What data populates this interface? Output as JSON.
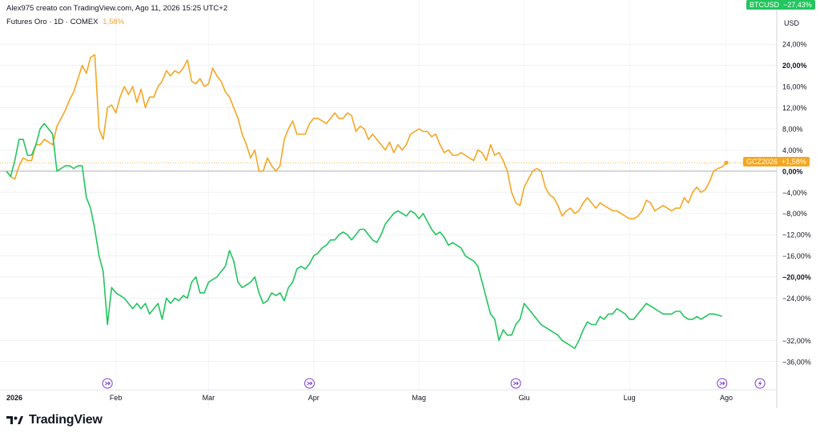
{
  "header": {
    "attribution": "Alex975 creato con TradingView.com, Ago 11, 2026 15:25 UTC+2",
    "symbol_line": "Futures Oro · 1D · COMEX",
    "symbol_change": "1,58%"
  },
  "axis": {
    "currency": "USD",
    "y_ticks": [
      "24,00%",
      "20,00%",
      "16,00%",
      "12,00%",
      "8,00%",
      "4,00%",
      "0,00%",
      "−4,00%",
      "−8,00%",
      "−12,00%",
      "−16,00%",
      "−20,00%",
      "−24,00%",
      "−32,00%",
      "−36,00%"
    ],
    "y_tick_values": [
      24,
      20,
      16,
      12,
      8,
      4,
      0,
      -4,
      -8,
      -12,
      -16,
      -20,
      -24,
      -32,
      -36
    ],
    "bold_ticks": [
      "20,00%",
      "0,00%",
      "−20,00%"
    ],
    "x_ticks": [
      "2026",
      "Feb",
      "Mar",
      "Apr",
      "Mag",
      "Giu",
      "Lug",
      "Ago"
    ],
    "x_tick_index": [
      0,
      26,
      48,
      73,
      98,
      123,
      148,
      171
    ]
  },
  "logo": {
    "text": "TradingView"
  },
  "colors": {
    "gold": "#f5a623",
    "btc": "#22c55e",
    "grid": "#eef0f3",
    "zero": "#9598a1",
    "event": "#7b3fd1"
  },
  "event_icons": [
    {
      "icon": "split-arrow-icon",
      "index": 24
    },
    {
      "icon": "split-arrow-icon",
      "index": 72
    },
    {
      "icon": "split-arrow-icon",
      "index": 121
    },
    {
      "icon": "split-arrow-icon",
      "index": 170
    },
    {
      "icon": "lightning-icon",
      "index": 179
    }
  ],
  "chart_data": {
    "type": "line",
    "y_unit": "%",
    "ylim": [
      -38,
      26
    ],
    "series": [
      {
        "name": "GCZ2026",
        "last_label": "+1,58%",
        "color": "#f5a623",
        "values": [
          0,
          -1,
          -1.5,
          1,
          2.5,
          2,
          2,
          5,
          5,
          6,
          5.5,
          5,
          8.5,
          10,
          11.5,
          13.5,
          15,
          17.5,
          20,
          18.5,
          21.5,
          22,
          8,
          6,
          12,
          12.5,
          11,
          14,
          16,
          14.5,
          16,
          13,
          15.5,
          12,
          14,
          14,
          16,
          17,
          19,
          18,
          19,
          18.5,
          19.5,
          21,
          17,
          16.5,
          17.5,
          16,
          16.5,
          19.5,
          18,
          17,
          15,
          14,
          12,
          10,
          7,
          5,
          2.5,
          4,
          0,
          0,
          2.5,
          1,
          0,
          1,
          6,
          8,
          9.5,
          7,
          7,
          7,
          9,
          10,
          10,
          9.5,
          9,
          10,
          11,
          10,
          10,
          11,
          10.5,
          7.5,
          8.5,
          8,
          6,
          7,
          6,
          5,
          4,
          5.5,
          3.5,
          5,
          4,
          5,
          7,
          7.5,
          8,
          7.5,
          7.5,
          6.5,
          7,
          5,
          3.5,
          4,
          3,
          3,
          3.5,
          3,
          2.5,
          2,
          4,
          3.5,
          2,
          5,
          3,
          3.5,
          2,
          0,
          -4,
          -6,
          -6.5,
          -3,
          -1.5,
          0,
          0.5,
          0,
          -3,
          -4.5,
          -5,
          -6.5,
          -8.5,
          -7.5,
          -7,
          -8,
          -7.5,
          -6,
          -5,
          -6,
          -7,
          -6,
          -6.5,
          -7,
          -7.5,
          -7.5,
          -8,
          -8.5,
          -9,
          -9,
          -8.5,
          -7.5,
          -5.5,
          -6,
          -7.5,
          -7,
          -6.5,
          -7,
          -7.5,
          -7,
          -7,
          -5,
          -6,
          -4,
          -3,
          -4,
          -3.5,
          -2,
          0,
          0.5,
          0.8,
          1.58
        ]
      },
      {
        "name": "BTCUSD",
        "last_label": "−27,43%",
        "color": "#22c55e",
        "values": [
          0,
          -1,
          2,
          6,
          6,
          3,
          3,
          5,
          8,
          9,
          8,
          7,
          0,
          0.5,
          1,
          1,
          0.5,
          1,
          1,
          -5,
          -7,
          -11,
          -16,
          -19,
          -29,
          -22,
          -23,
          -23.5,
          -24,
          -25,
          -26,
          -25,
          -26,
          -25,
          -27,
          -26,
          -25,
          -28,
          -24,
          -25,
          -24,
          -24.5,
          -23.5,
          -24,
          -21,
          -20,
          -23,
          -23,
          -21,
          -20.5,
          -20,
          -19,
          -18,
          -15,
          -17,
          -21,
          -22,
          -21.5,
          -21,
          -20,
          -23,
          -25,
          -24.5,
          -23,
          -23.5,
          -23,
          -24.5,
          -22,
          -21,
          -18.5,
          -18,
          -18.5,
          -17.5,
          -16,
          -15.5,
          -14.5,
          -14,
          -13,
          -13,
          -12,
          -11.5,
          -12,
          -13,
          -12,
          -11,
          -11,
          -12,
          -13,
          -13.5,
          -12,
          -10,
          -9,
          -8,
          -7.5,
          -8,
          -8.5,
          -7.5,
          -8,
          -9,
          -8,
          -9.5,
          -11,
          -12,
          -11.5,
          -12.5,
          -14,
          -13.5,
          -14,
          -14.5,
          -16,
          -16.5,
          -17,
          -18,
          -21,
          -24,
          -27,
          -28,
          -32,
          -30,
          -31,
          -31,
          -29,
          -28,
          -25,
          -26,
          -27,
          -28,
          -29,
          -29.5,
          -30,
          -30.5,
          -31,
          -32,
          -32.5,
          -33,
          -33.5,
          -32,
          -30,
          -28.5,
          -29,
          -29,
          -27.5,
          -28,
          -27,
          -27,
          -26,
          -26.5,
          -27,
          -28,
          -28,
          -27,
          -26,
          -25,
          -25.5,
          -26,
          -26.5,
          -27,
          -27,
          -27,
          -26.5,
          -26.5,
          -27.5,
          -28,
          -28,
          -27.5,
          -28,
          -27.5,
          -27,
          -27,
          -27.2,
          -27.43
        ]
      }
    ]
  }
}
